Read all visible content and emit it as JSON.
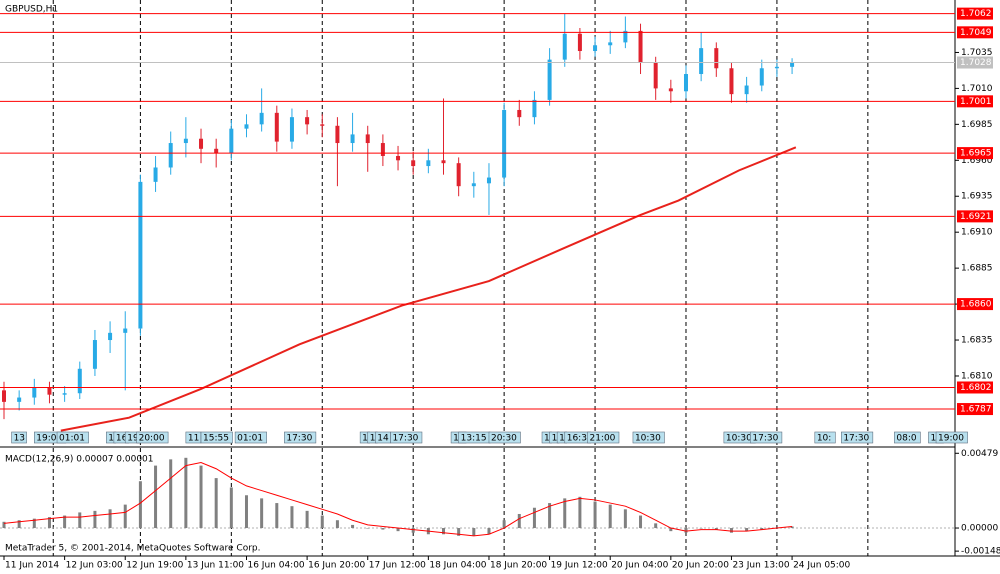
{
  "chart_data": [
    {
      "type": "candlestick",
      "title": "GBPUSD,H1",
      "footer": "MetaTrader 5, © 2001-2014, MetaQuotes Software Corp.",
      "up_color": "#28aae6",
      "down_color": "#e0222e",
      "grid": true,
      "xlim": [
        0,
        251
      ],
      "ylim": [
        1.6762,
        1.7068
      ],
      "x": [
        0,
        4,
        8,
        12,
        16,
        20,
        24,
        28,
        32,
        36,
        40,
        44,
        48,
        52,
        56,
        60,
        64,
        68,
        72,
        76,
        80,
        84,
        88,
        92,
        96,
        100,
        104,
        108,
        112,
        116,
        120,
        124,
        128,
        132,
        136,
        140,
        144,
        148,
        152,
        156,
        160,
        164,
        168,
        172,
        176,
        180,
        184,
        188,
        192,
        196,
        200,
        204,
        208
      ],
      "open": [
        1.68,
        1.6792,
        1.6795,
        1.6802,
        1.6797,
        1.6798,
        1.6815,
        1.6835,
        1.684,
        1.6843,
        1.6945,
        1.6955,
        1.6972,
        1.6975,
        1.6968,
        1.6965,
        1.6982,
        1.6985,
        1.6993,
        1.6973,
        1.699,
        1.6985,
        1.6984,
        1.6972,
        1.6978,
        1.6972,
        1.6963,
        1.696,
        1.6956,
        1.696,
        1.6958,
        1.6942,
        1.6944,
        1.6948,
        1.6995,
        1.699,
        1.7002,
        1.703,
        1.7048,
        1.7036,
        1.704,
        1.7042,
        1.705,
        1.7028,
        1.701,
        1.7008,
        1.702,
        1.7038,
        1.7024,
        1.7006,
        1.7012,
        1.7024,
        1.7025
      ],
      "high": [
        1.6806,
        1.68,
        1.6808,
        1.6806,
        1.6803,
        1.682,
        1.6842,
        1.6848,
        1.6855,
        1.695,
        1.6963,
        1.698,
        1.699,
        1.6982,
        1.6975,
        1.6988,
        1.6992,
        1.701,
        1.6998,
        1.6996,
        1.6995,
        1.6992,
        1.699,
        1.6993,
        1.6984,
        1.6978,
        1.697,
        1.6966,
        1.6968,
        1.7003,
        1.6962,
        1.6952,
        1.6958,
        1.7,
        1.7002,
        1.7008,
        1.7038,
        1.7062,
        1.7052,
        1.7046,
        1.705,
        1.706,
        1.7055,
        1.7032,
        1.7016,
        1.7026,
        1.7049,
        1.7042,
        1.7028,
        1.7018,
        1.703,
        1.703,
        1.7031
      ],
      "low": [
        1.678,
        1.6786,
        1.679,
        1.6791,
        1.6792,
        1.6794,
        1.681,
        1.6826,
        1.68,
        1.6838,
        1.6938,
        1.695,
        1.6962,
        1.6958,
        1.6955,
        1.696,
        1.6976,
        1.698,
        1.6966,
        1.6968,
        1.6978,
        1.6976,
        1.6942,
        1.6966,
        1.6952,
        1.6956,
        1.6953,
        1.695,
        1.6951,
        1.695,
        1.6935,
        1.6934,
        1.6922,
        1.6942,
        1.6984,
        1.6985,
        1.6998,
        1.7025,
        1.703,
        1.7032,
        1.7034,
        1.7038,
        1.702,
        1.7002,
        1.7,
        1.7003,
        1.7015,
        1.7018,
        1.7,
        1.7,
        1.7008,
        1.7018,
        1.702
      ],
      "close": [
        1.6792,
        1.6795,
        1.6802,
        1.6797,
        1.6798,
        1.6815,
        1.6835,
        1.684,
        1.6843,
        1.6945,
        1.6955,
        1.6972,
        1.6975,
        1.6968,
        1.6965,
        1.6982,
        1.6985,
        1.6993,
        1.6973,
        1.699,
        1.6985,
        1.6984,
        1.6972,
        1.6978,
        1.6972,
        1.6963,
        1.696,
        1.6956,
        1.696,
        1.6958,
        1.6942,
        1.6944,
        1.6948,
        1.6995,
        1.699,
        1.7002,
        1.703,
        1.7048,
        1.7036,
        1.704,
        1.7042,
        1.705,
        1.7028,
        1.701,
        1.7008,
        1.702,
        1.7038,
        1.7024,
        1.7006,
        1.7012,
        1.7024,
        1.7025,
        1.7028
      ],
      "ma": {
        "color": "#e8221c",
        "x": [
          15,
          33,
          52,
          78,
          105,
          128,
          147,
          168,
          178,
          194,
          209
        ],
        "values": [
          1.6772,
          1.6781,
          1.6801,
          1.6832,
          1.6859,
          1.6876,
          1.6898,
          1.6922,
          1.6932,
          1.6953,
          1.6969
        ]
      },
      "yticks": [
        1.7035,
        {
          "value": 1.701,
          "label": "1.7010"
        },
        1.6985,
        {
          "value": 1.696,
          "label": "1.6960"
        },
        1.6935,
        {
          "value": 1.691,
          "label": "1.6910"
        },
        1.6885,
        {
          "value": 1.686,
          "label": "1.6860"
        },
        1.6835,
        {
          "value": 1.681,
          "label": "1.6810"
        }
      ],
      "levels": [
        1.7062,
        1.7049,
        1.7001,
        1.6965,
        1.6921,
        {
          "value": 1.686,
          "label": "1.6860"
        },
        1.6802,
        1.6787
      ],
      "level_color": "#ff0000",
      "current_price": 1.7028,
      "xgrid": [
        13,
        36,
        60,
        84,
        108,
        132,
        156,
        180,
        204,
        228
      ],
      "xticks": [
        {
          "value": 0,
          "label": "11 Jun 2014"
        },
        {
          "value": 16,
          "label": "12 Jun 03:00"
        },
        {
          "value": 32,
          "label": "12 Jun 19:00"
        },
        {
          "value": 48,
          "label": "13 Jun 11:00"
        },
        {
          "value": 64,
          "label": "16 Jun 04:00"
        },
        {
          "value": 80,
          "label": "16 Jun 20:00"
        },
        {
          "value": 96,
          "label": "17 Jun 12:00"
        },
        {
          "value": 112,
          "label": "18 Jun 04:00"
        },
        {
          "value": 128,
          "label": "18 Jun 20:00"
        },
        {
          "value": 144,
          "label": "19 Jun 12:00"
        },
        {
          "value": 160,
          "label": "20 Jun 04:00"
        },
        {
          "value": 176,
          "label": "20 Jun 20:00"
        },
        {
          "value": 192,
          "label": "23 Jun 13:00"
        },
        {
          "value": 208,
          "label": "24 Jun 05:00"
        }
      ],
      "events": [
        {
          "x": 2,
          "label": "13"
        },
        {
          "x": 8,
          "label": "19:00"
        },
        {
          "x": 14,
          "label": "01:01"
        },
        {
          "x": 27,
          "label": "1"
        },
        {
          "x": 29,
          "label": "16"
        },
        {
          "x": 32,
          "label": "19"
        },
        {
          "x": 35,
          "label": "20:00"
        },
        {
          "x": 48,
          "label": "11"
        },
        {
          "x": 52,
          "label": "15:55"
        },
        {
          "x": 61,
          "label": "01:01"
        },
        {
          "x": 74,
          "label": "17:30"
        },
        {
          "x": 94,
          "label": "1"
        },
        {
          "x": 96,
          "label": "1"
        },
        {
          "x": 98,
          "label": "14"
        },
        {
          "x": 102,
          "label": "17:30"
        },
        {
          "x": 118,
          "label": "10"
        },
        {
          "x": 120,
          "label": "13:15"
        },
        {
          "x": 128,
          "label": "20:30"
        },
        {
          "x": 142,
          "label": "1"
        },
        {
          "x": 144,
          "label": "1"
        },
        {
          "x": 146,
          "label": "1"
        },
        {
          "x": 148,
          "label": "16:3"
        },
        {
          "x": 154,
          "label": "21:00"
        },
        {
          "x": 166,
          "label": "10:30"
        },
        {
          "x": 190,
          "label": "10:30"
        },
        {
          "x": 197,
          "label": "17:30"
        },
        {
          "x": 214,
          "label": "10:"
        },
        {
          "x": 221,
          "label": "17:30"
        },
        {
          "x": 235,
          "label": "08:0"
        },
        {
          "x": 244,
          "label": "16"
        },
        {
          "x": 246,
          "label": "19:00"
        }
      ]
    },
    {
      "type": "macd",
      "title": "MACD(12,26,9) 0.00007 0.00001",
      "xlim": [
        0,
        251
      ],
      "ylim": [
        -0.0016,
        0.005
      ],
      "yticks": [
        0.00479,
        {
          "value": 0,
          "label": "0.00000"
        },
        -0.00148
      ],
      "x": [
        0,
        4,
        8,
        12,
        16,
        20,
        24,
        28,
        32,
        36,
        40,
        44,
        48,
        52,
        56,
        60,
        64,
        68,
        72,
        76,
        80,
        84,
        88,
        92,
        96,
        100,
        104,
        108,
        112,
        116,
        120,
        124,
        128,
        132,
        136,
        140,
        144,
        148,
        152,
        156,
        160,
        164,
        168,
        172,
        176,
        180,
        184,
        188,
        192,
        196,
        200,
        204,
        208
      ],
      "series": [
        {
          "color": "#808080",
          "values": [
            0.0004,
            0.0005,
            0.0006,
            0.0007,
            0.0008,
            0.001,
            0.0011,
            0.0012,
            0.0015,
            0.003,
            0.004,
            0.0044,
            0.0045,
            0.004,
            0.0032,
            0.0026,
            0.0021,
            0.0019,
            0.0016,
            0.0014,
            0.0011,
            0.0008,
            0.0005,
            0.0002,
            0,
            -0.0001,
            -0.0002,
            -0.0003,
            -0.0004,
            -0.0004,
            -0.0005,
            -0.0005,
            -0.0004,
            0.0005,
            0.0009,
            0.0013,
            0.0016,
            0.0019,
            0.002,
            0.0017,
            0.0015,
            0.0012,
            0.0008,
            0.0003,
            -0.0002,
            -0.0003,
            0,
            -0.0001,
            -0.0003,
            -0.0002,
            -0.0001,
            0,
            0.0001
          ]
        },
        {
          "color": "#ff0000",
          "values": [
            0.0003,
            0.0004,
            0.0005,
            0.0006,
            0.0007,
            0.0007,
            0.0008,
            0.0009,
            0.001,
            0.0016,
            0.0024,
            0.0032,
            0.004,
            0.0042,
            0.0038,
            0.0032,
            0.0027,
            0.0024,
            0.0021,
            0.0018,
            0.0015,
            0.0012,
            0.0009,
            0.0005,
            0.0002,
            0.0001,
            0,
            -0.0001,
            -0.0002,
            -0.0003,
            -0.0004,
            -0.0005,
            -0.0004,
            0,
            0.0006,
            0.001,
            0.0014,
            0.0017,
            0.0019,
            0.0018,
            0.0016,
            0.0014,
            0.001,
            0.0005,
            0,
            -0.0002,
            -0.0001,
            -0.0001,
            -0.0002,
            -0.0002,
            -0.0001,
            0,
            0.0001
          ]
        }
      ]
    }
  ]
}
